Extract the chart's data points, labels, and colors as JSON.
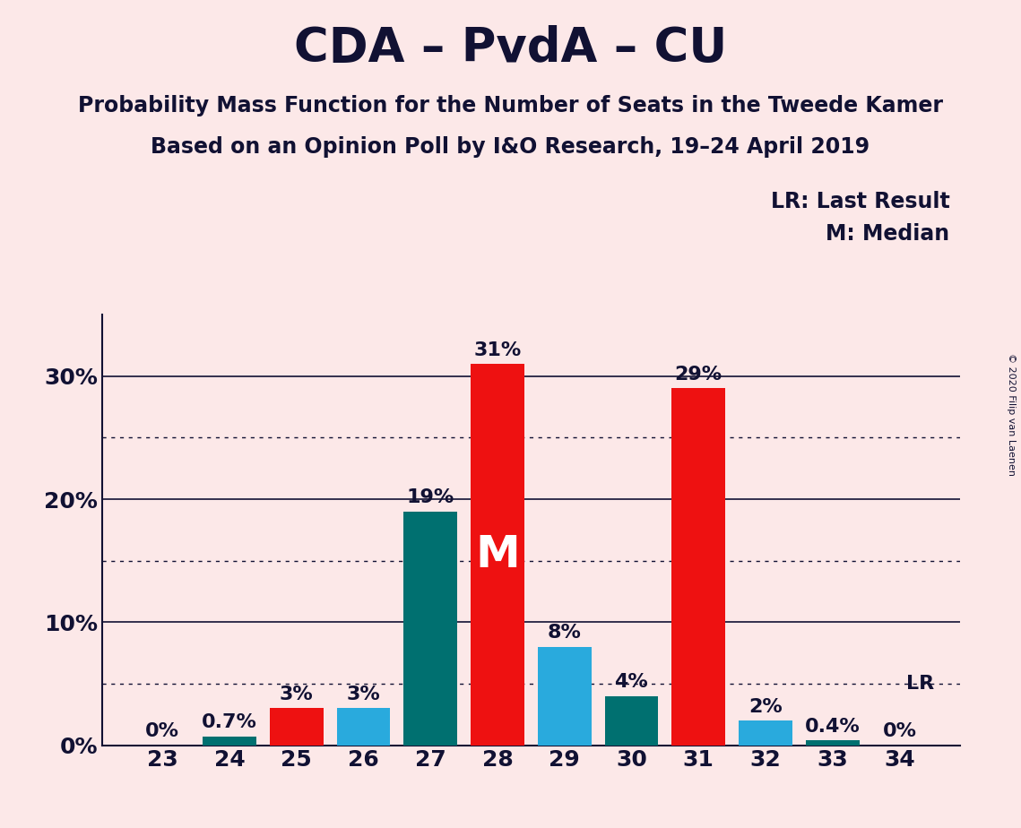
{
  "title": "CDA – PvdA – CU",
  "subtitle1": "Probability Mass Function for the Number of Seats in the Tweede Kamer",
  "subtitle2": "Based on an Opinion Poll by I&O Research, 19–24 April 2019",
  "copyright": "© 2020 Filip van Laenen",
  "seats": [
    23,
    24,
    25,
    26,
    27,
    28,
    29,
    30,
    31,
    32,
    33,
    34
  ],
  "values": [
    0.0,
    0.7,
    3.0,
    3.0,
    19.0,
    31.0,
    8.0,
    4.0,
    29.0,
    2.0,
    0.4,
    0.0
  ],
  "bar_colors": [
    "#fce8e8",
    "#007070",
    "#ee1111",
    "#29aadd",
    "#007070",
    "#ee1111",
    "#29aadd",
    "#007070",
    "#ee1111",
    "#29aadd",
    "#007070",
    "#fce8e8"
  ],
  "bar_labels": [
    "0%",
    "0.7%",
    "3%",
    "3%",
    "19%",
    "31%",
    "8%",
    "4%",
    "29%",
    "2%",
    "0.4%",
    "0%"
  ],
  "median_seat": 28,
  "median_label": "M",
  "lr_seat": 32,
  "lr_value": 5.0,
  "lr_label": "LR",
  "legend_lr": "LR: Last Result",
  "legend_m": "M: Median",
  "ylim": [
    0,
    35
  ],
  "yticks": [
    0,
    10,
    20,
    30
  ],
  "ytick_labels": [
    "0%",
    "10%",
    "20%",
    "30%"
  ],
  "dotted_lines": [
    5,
    15,
    25
  ],
  "background_color": "#fce8e8",
  "axis_color": "#111133",
  "title_fontsize": 38,
  "subtitle_fontsize": 17,
  "label_fontsize": 16,
  "tick_fontsize": 18,
  "legend_fontsize": 17,
  "xlim": [
    22.1,
    34.9
  ]
}
